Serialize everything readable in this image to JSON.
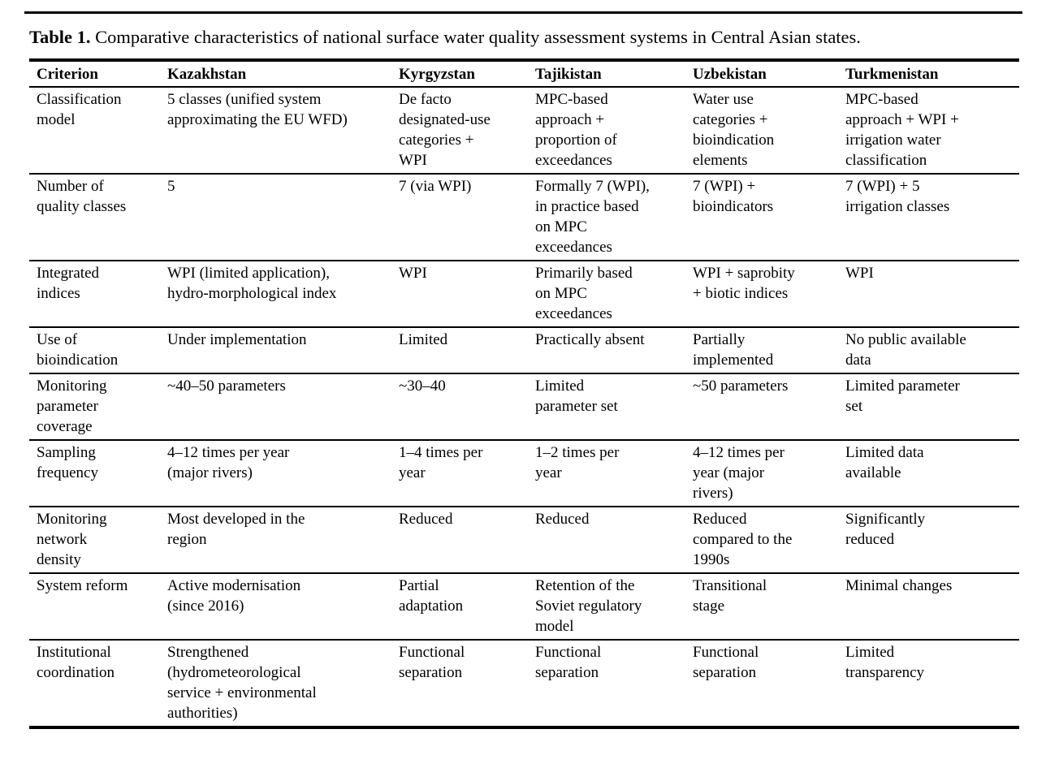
{
  "caption": {
    "label": "Table 1.",
    "text": "Comparative characteristics of national surface water quality assessment systems in Central Asian states."
  },
  "table": {
    "columns": [
      "Criterion",
      "Kazakhstan",
      "Kyrgyzstan",
      "Tajikistan",
      "Uzbekistan",
      "Turkmenistan"
    ],
    "rows": [
      [
        "Classification\nmodel",
        "5 classes (unified system\napproximating the EU WFD)",
        "De facto\ndesignated-use\ncategories +\nWPI",
        "MPC-based\napproach +\nproportion of\nexceedances",
        "Water use\ncategories +\nbioindication\nelements",
        "MPC-based\napproach + WPI +\nirrigation water\nclassification"
      ],
      [
        "Number of\nquality classes",
        "5",
        "7 (via WPI)",
        "Formally 7 (WPI),\nin practice based\non MPC\nexceedances",
        "7 (WPI) +\nbioindicators",
        "7 (WPI) + 5\nirrigation classes"
      ],
      [
        "Integrated\nindices",
        "WPI (limited application),\nhydro-morphological index",
        "WPI",
        "Primarily based\non MPC\nexceedances",
        "WPI + saprobity\n+ biotic indices",
        "WPI"
      ],
      [
        "Use of\nbioindication",
        "Under implementation",
        "Limited",
        "Practically absent",
        "Partially\nimplemented",
        "No public available\ndata"
      ],
      [
        "Monitoring\nparameter\ncoverage",
        "~40–50 parameters",
        "~30–40",
        "Limited\nparameter set",
        "~50 parameters",
        "Limited parameter\nset"
      ],
      [
        "Sampling\nfrequency",
        "4–12 times per year\n(major rivers)",
        "1–4 times per\nyear",
        "1–2 times per\nyear",
        "4–12 times per\nyear (major\nrivers)",
        "Limited data\navailable"
      ],
      [
        "Monitoring\nnetwork\ndensity",
        "Most developed in the\nregion",
        "Reduced",
        "Reduced",
        "Reduced\ncompared to the\n1990s",
        "Significantly\nreduced"
      ],
      [
        "System reform",
        "Active modernisation\n(since 2016)",
        "Partial\nadaptation",
        "Retention of the\nSoviet regulatory\nmodel",
        "Transitional\nstage",
        "Minimal changes"
      ],
      [
        "Institutional\ncoordination",
        "Strengthened\n(hydrometeorological\nservice + environmental\nauthorities)",
        "Functional\nseparation",
        "Functional\nseparation",
        "Functional\nseparation",
        "Limited\ntransparency"
      ]
    ]
  }
}
